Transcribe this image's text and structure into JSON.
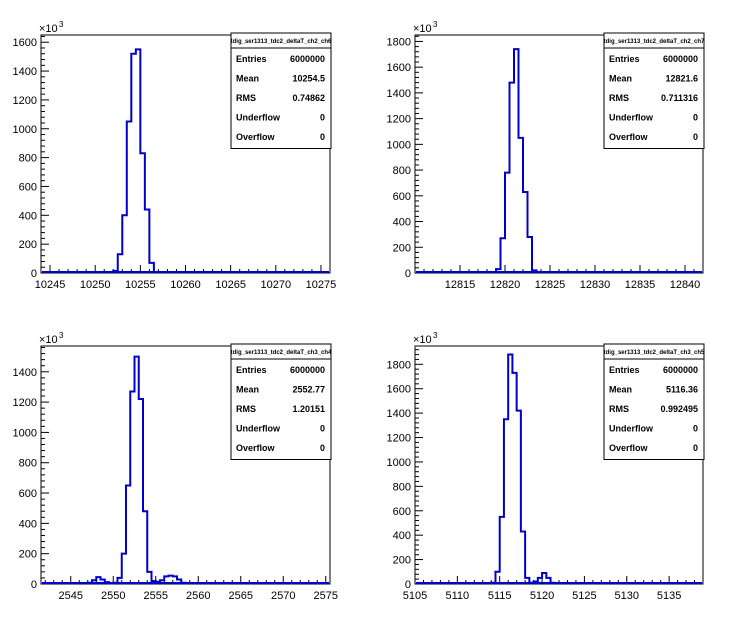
{
  "style": {
    "line_color": "#0000cc",
    "axis_color": "#000000",
    "background": "#ffffff"
  },
  "multiplier": "×10",
  "multiplier_exp": "3",
  "chart_data": [
    {
      "type": "histogram",
      "title": "tdig_ser1313_tdc2_deltaT_ch2_ch6",
      "xlim": [
        10244,
        10276
      ],
      "ylim": [
        0,
        1650
      ],
      "xticks": [
        10245,
        10250,
        10255,
        10260,
        10265,
        10270,
        10275
      ],
      "yticks": [
        0,
        200,
        400,
        600,
        800,
        1000,
        1200,
        1400,
        1600
      ],
      "bin_width": 0.5,
      "bins_x": [
        10252.0,
        10252.5,
        10253.0,
        10253.5,
        10254.0,
        10254.5,
        10255.0,
        10255.5,
        10256.0
      ],
      "bins_y": [
        15,
        130,
        400,
        1050,
        1520,
        1550,
        830,
        440,
        70
      ],
      "stats": [
        {
          "label": "Entries",
          "value": "6000000"
        },
        {
          "label": "Mean",
          "value": "10254.5"
        },
        {
          "label": "RMS",
          "value": "0.74862"
        },
        {
          "label": "Underflow",
          "value": "0"
        },
        {
          "label": "Overflow",
          "value": "0"
        }
      ]
    },
    {
      "type": "histogram",
      "title": "tdig_ser1313_tdc2_deltaT_ch2_ch7",
      "xlim": [
        12810,
        12842
      ],
      "ylim": [
        0,
        1850
      ],
      "xticks": [
        12815,
        12820,
        12825,
        12830,
        12835,
        12840
      ],
      "yticks": [
        0,
        200,
        400,
        600,
        800,
        1000,
        1200,
        1400,
        1600,
        1800
      ],
      "bin_width": 0.5,
      "bins_x": [
        12819.0,
        12819.5,
        12820.0,
        12820.5,
        12821.0,
        12821.5,
        12822.0,
        12822.5,
        12823.0
      ],
      "bins_y": [
        30,
        270,
        780,
        1480,
        1740,
        1050,
        630,
        280,
        20
      ],
      "stats": [
        {
          "label": "Entries",
          "value": "6000000"
        },
        {
          "label": "Mean",
          "value": "12821.6"
        },
        {
          "label": "RMS",
          "value": "0.711316"
        },
        {
          "label": "Underflow",
          "value": "0"
        },
        {
          "label": "Overflow",
          "value": "0"
        }
      ]
    },
    {
      "type": "histogram",
      "title": "tdig_ser1313_tdc2_deltaT_ch3_ch4",
      "xlim": [
        2541.5,
        2575.5
      ],
      "ylim": [
        0,
        1570
      ],
      "xticks": [
        2545,
        2550,
        2555,
        2560,
        2565,
        2570,
        2575
      ],
      "yticks": [
        0,
        200,
        400,
        600,
        800,
        1000,
        1200,
        1400
      ],
      "bin_width": 0.5,
      "bins_x": [
        2547.0,
        2547.5,
        2548.0,
        2548.5,
        2549.0,
        2549.5,
        2550.0,
        2550.5,
        2551.0,
        2551.5,
        2552.0,
        2552.5,
        2553.0,
        2553.5,
        2554.0,
        2554.5,
        2555.0,
        2555.5,
        2556.0,
        2556.5,
        2557.0,
        2557.5,
        2558.0
      ],
      "bins_y": [
        8,
        25,
        45,
        30,
        12,
        5,
        8,
        40,
        200,
        650,
        1270,
        1500,
        1220,
        480,
        80,
        20,
        15,
        25,
        50,
        55,
        50,
        30,
        8
      ],
      "stats": [
        {
          "label": "Entries",
          "value": "6000000"
        },
        {
          "label": "Mean",
          "value": "2552.77"
        },
        {
          "label": "RMS",
          "value": "1.20151"
        },
        {
          "label": "Underflow",
          "value": "0"
        },
        {
          "label": "Overflow",
          "value": "0"
        }
      ]
    },
    {
      "type": "histogram",
      "title": "tdig_ser1313_tdc2_deltaT_ch3_ch5",
      "xlim": [
        5105,
        5139
      ],
      "ylim": [
        0,
        1950
      ],
      "xticks": [
        5105,
        5110,
        5115,
        5120,
        5125,
        5130,
        5135
      ],
      "yticks": [
        0,
        200,
        400,
        600,
        800,
        1000,
        1200,
        1400,
        1600,
        1800
      ],
      "bin_width": 0.5,
      "bins_x": [
        5114.0,
        5114.5,
        5115.0,
        5115.5,
        5116.0,
        5116.5,
        5117.0,
        5117.5,
        5118.0,
        5118.5,
        5119.0,
        5119.5,
        5120.0,
        5120.5,
        5121.0
      ],
      "bins_y": [
        10,
        100,
        550,
        1350,
        1880,
        1730,
        1420,
        430,
        50,
        10,
        20,
        50,
        90,
        50,
        10
      ],
      "stats": [
        {
          "label": "Entries",
          "value": "6000000"
        },
        {
          "label": "Mean",
          "value": "5116.36"
        },
        {
          "label": "RMS",
          "value": "0.992495"
        },
        {
          "label": "Underflow",
          "value": "0"
        },
        {
          "label": "Overflow",
          "value": "0"
        }
      ]
    }
  ]
}
